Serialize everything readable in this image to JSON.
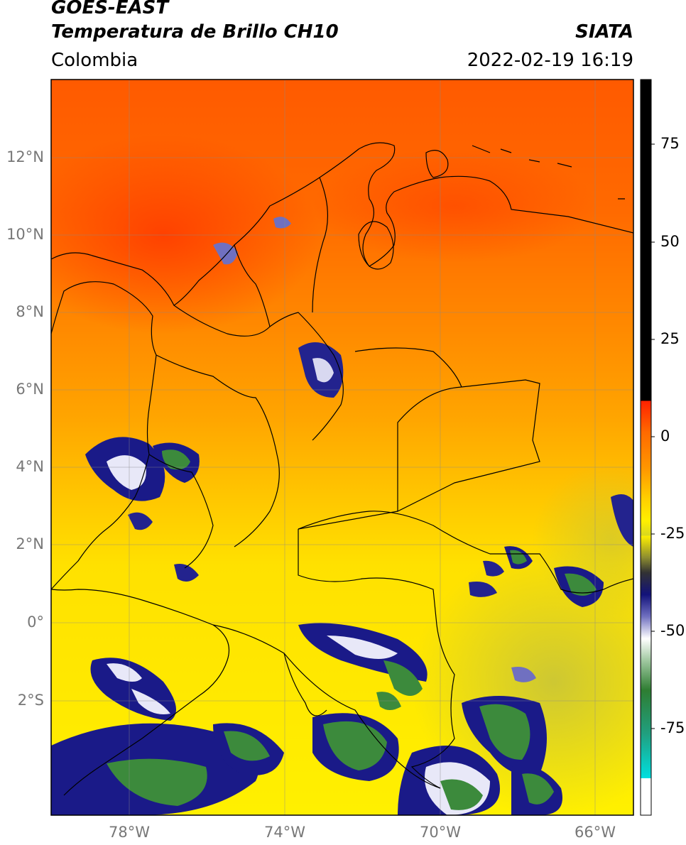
{
  "header": {
    "title_line1": "GOES-EAST",
    "title_line2": "Temperatura de Brillo CH10",
    "region": "Colombia",
    "source": "SIATA",
    "datetime": "2022-02-19 16:19"
  },
  "map": {
    "lat_labels": [
      "12°N",
      "10°N",
      "8°N",
      "6°N",
      "4°N",
      "2°N",
      "0°",
      "2°S"
    ],
    "lon_labels": [
      "78°W",
      "74°W",
      "70°W",
      "66°W"
    ]
  },
  "colorbar": {
    "ticks": [
      "75",
      "50",
      "25",
      "0",
      "-25",
      "-50",
      "-75"
    ],
    "colors": {
      "black": "#000000",
      "red": "#ff2200",
      "orange": "#ff8c00",
      "yellow": "#ffee00",
      "olive": "#b5b52a",
      "navy": "#12127a",
      "white": "#ffffff",
      "green": "#2e7d32",
      "cyan": "#00d8d8"
    }
  }
}
